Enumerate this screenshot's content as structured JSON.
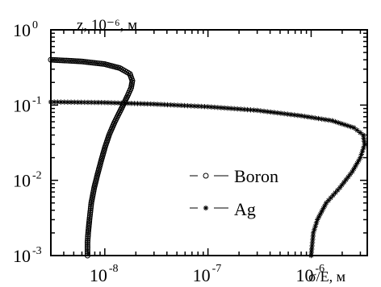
{
  "chart_data": {
    "type": "scatter",
    "title": "",
    "xlabel": "σ/E, м",
    "ylabel": "z, 10⁻⁶, м",
    "x_scale": "log",
    "y_scale": "log",
    "xlim": [
      3e-09,
      3.5e-06
    ],
    "ylim": [
      0.001,
      1
    ],
    "x_ticks": [
      {
        "value": 1e-08,
        "base": "10",
        "exp": "-8"
      },
      {
        "value": 1e-07,
        "base": "10",
        "exp": "-7"
      },
      {
        "value": 1e-06,
        "base": "10",
        "exp": "-6"
      }
    ],
    "y_ticks": [
      {
        "value": 1,
        "base": "10",
        "exp": "0"
      },
      {
        "value": 0.1,
        "base": "10",
        "exp": "-1"
      },
      {
        "value": 0.01,
        "base": "10",
        "exp": "-2"
      },
      {
        "value": 0.001,
        "base": "10",
        "exp": "-3"
      }
    ],
    "legend_position": "lower-center",
    "series": [
      {
        "name": "Boron",
        "marker": "circle",
        "color": "#000000",
        "points": [
          [
            6.8e-09,
            0.001
          ],
          [
            6.8e-09,
            0.0015
          ],
          [
            6.9e-09,
            0.002
          ],
          [
            7.1e-09,
            0.003
          ],
          [
            7.4e-09,
            0.005
          ],
          [
            7.9e-09,
            0.008
          ],
          [
            8.5e-09,
            0.012
          ],
          [
            9.2e-09,
            0.018
          ],
          [
            1e-08,
            0.027
          ],
          [
            1.1e-08,
            0.04
          ],
          [
            1.25e-08,
            0.06
          ],
          [
            1.45e-08,
            0.09
          ],
          [
            1.65e-08,
            0.13
          ],
          [
            1.8e-08,
            0.17
          ],
          [
            1.85e-08,
            0.21
          ],
          [
            1.75e-08,
            0.26
          ],
          [
            1.4e-08,
            0.31
          ],
          [
            1e-08,
            0.35
          ],
          [
            6e-09,
            0.38
          ],
          [
            3e-09,
            0.4
          ]
        ]
      },
      {
        "name": "Ag",
        "marker": "asterisk",
        "color": "#000000",
        "points": [
          [
            1e-06,
            0.001
          ],
          [
            1.05e-06,
            0.002
          ],
          [
            1.15e-06,
            0.003
          ],
          [
            1.4e-06,
            0.005
          ],
          [
            1.9e-06,
            0.008
          ],
          [
            2.5e-06,
            0.013
          ],
          [
            3e-06,
            0.02
          ],
          [
            3.3e-06,
            0.03
          ],
          [
            3.2e-06,
            0.04
          ],
          [
            2.6e-06,
            0.05
          ],
          [
            1.6e-06,
            0.062
          ],
          [
            8e-07,
            0.072
          ],
          [
            3e-07,
            0.085
          ],
          [
            1e-07,
            0.095
          ],
          [
            3e-08,
            0.103
          ],
          [
            1e-08,
            0.108
          ],
          [
            3e-09,
            0.11
          ]
        ]
      }
    ]
  }
}
